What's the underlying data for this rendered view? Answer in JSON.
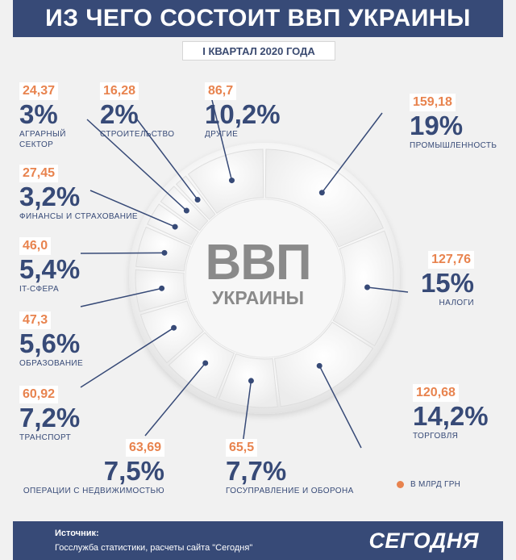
{
  "header": {
    "title": "ИЗ ЧЕГО СОСТОИТ ВВП УКРАИНЫ",
    "subtitle": "I КВАРТАЛ 2020 ГОДА"
  },
  "center": {
    "big": "ВВП",
    "small": "УКРАИНЫ"
  },
  "legend": {
    "label": "В МЛРД ГРН",
    "color": "#e8834e"
  },
  "footer": {
    "source_title": "Источник:",
    "source_text": "Госслужба статистики, расчеты сайта \"Сегодня\"",
    "logo": "СЕГОДНЯ"
  },
  "colors": {
    "brand": "#374a77",
    "accent": "#e8834e"
  },
  "chart_data": {
    "type": "pie",
    "title": "ИЗ ЧЕГО СОСТОИТ ВВП УКРАИНЫ",
    "subtitle": "I КВАРТАЛ 2020 ГОДА",
    "unit": "В МЛРД ГРН",
    "slices": [
      {
        "name": "ПРОМЫШЛЕННОСТЬ",
        "value": 159.18,
        "percent": "19%"
      },
      {
        "name": "НАЛОГИ",
        "value": 127.76,
        "percent": "15%"
      },
      {
        "name": "ТОРГОВЛЯ",
        "value": 120.68,
        "percent": "14,2%"
      },
      {
        "name": "ГОСУПРАВЛЕНИЕ И ОБОРОНА",
        "value": 65.5,
        "percent": "7,7%"
      },
      {
        "name": "ОПЕРАЦИИ С НЕДВИЖИМОСТЬЮ",
        "value": 63.69,
        "percent": "7,5%"
      },
      {
        "name": "ТРАНСПОРТ",
        "value": 60.92,
        "percent": "7,2%"
      },
      {
        "name": "ОБРАЗОВАНИЕ",
        "value": 47.3,
        "percent": "5,6%"
      },
      {
        "name": "IT-СФЕРА",
        "value": 46.0,
        "percent": "5,4%"
      },
      {
        "name": "ФИНАНСЫ И СТРАХОВАНИЕ",
        "value": 27.45,
        "percent": "3,2%"
      },
      {
        "name": "АГРАРНЫЙ СЕКТОР",
        "value": 24.37,
        "percent": "3%"
      },
      {
        "name": "СТРОИТЕЛЬСТВО",
        "value": 16.28,
        "percent": "2%"
      },
      {
        "name": "ДРУГИЕ",
        "value": 86.7,
        "percent": "10,2%"
      }
    ],
    "value_labels": [
      "159,18",
      "127,76",
      "120,68",
      "65,5",
      "63,69",
      "60,92",
      "47,3",
      "46,0",
      "27,45",
      "24,37",
      "16,28",
      "86,7"
    ]
  }
}
